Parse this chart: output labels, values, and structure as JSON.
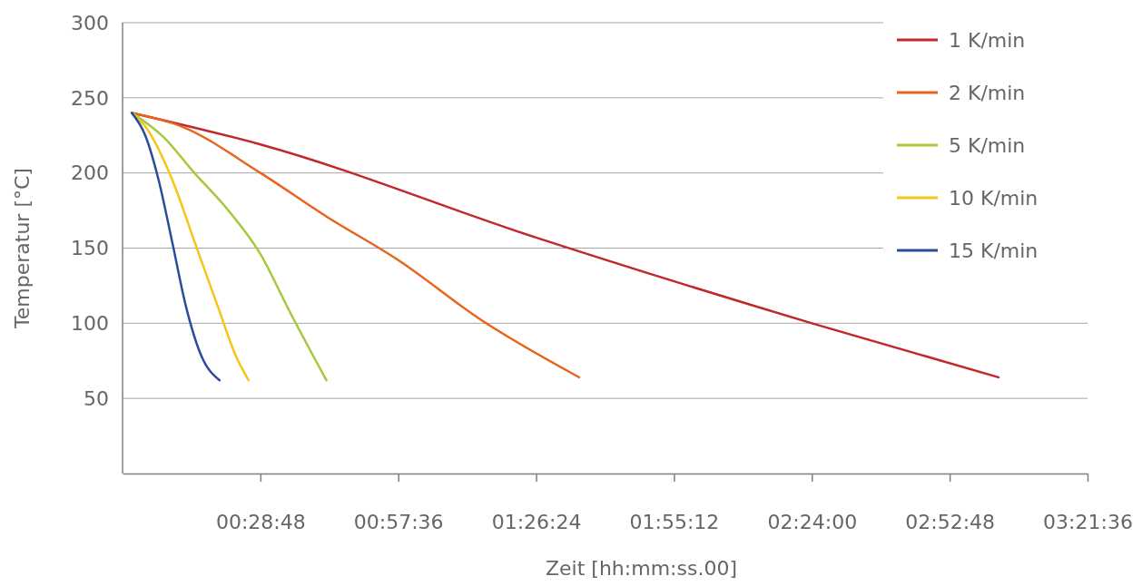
{
  "chart_data": {
    "type": "line",
    "xlabel": "Zeit [hh:mm:ss.00]",
    "ylabel": "Temperatur [°C]",
    "xlim": [
      0,
      3.36
    ],
    "xticks": [
      {
        "value": 0.48,
        "label": "00:28:48"
      },
      {
        "value": 0.96,
        "label": "00:57:36"
      },
      {
        "value": 1.44,
        "label": "01:26:24"
      },
      {
        "value": 1.92,
        "label": "01:55:12"
      },
      {
        "value": 2.4,
        "label": "02:24:00"
      },
      {
        "value": 2.88,
        "label": "02:52:48"
      },
      {
        "value": 3.36,
        "label": "03:21:36"
      }
    ],
    "ylim": [
      0,
      300
    ],
    "yticks": [
      50,
      100,
      150,
      200,
      250,
      300
    ],
    "grid": "y",
    "legend": "top right",
    "line_style": "solid",
    "marker": "none",
    "series": [
      {
        "name": "1 K/min",
        "color": "#c0282d",
        "x": [
          0.032,
          0.48,
          1.44,
          2.4,
          3.05
        ],
        "values": [
          240,
          219,
          157,
          100,
          64
        ]
      },
      {
        "name": "2 K/min",
        "color": "#e8641e",
        "x": [
          0.032,
          0.205,
          0.48,
          0.71,
          0.96,
          1.25,
          1.59
        ],
        "values": [
          240,
          231,
          200,
          171,
          142,
          102,
          64
        ]
      },
      {
        "name": "5 K/min",
        "color": "#a4c93a",
        "x": [
          0.032,
          0.142,
          0.25,
          0.36,
          0.48,
          0.584,
          0.71
        ],
        "values": [
          240,
          224,
          200,
          177,
          146,
          107,
          62
        ]
      },
      {
        "name": "10 K/min",
        "color": "#f5c518",
        "x": [
          0.032,
          0.079,
          0.174,
          0.253,
          0.332,
          0.395,
          0.439
        ],
        "values": [
          240,
          231,
          195,
          153,
          111,
          78,
          62
        ]
      },
      {
        "name": "15 K/min",
        "color": "#2a4d9b",
        "x": [
          0.032,
          0.079,
          0.126,
          0.174,
          0.221,
          0.275,
          0.338
        ],
        "values": [
          240,
          225,
          195,
          153,
          111,
          78,
          62
        ]
      }
    ]
  }
}
